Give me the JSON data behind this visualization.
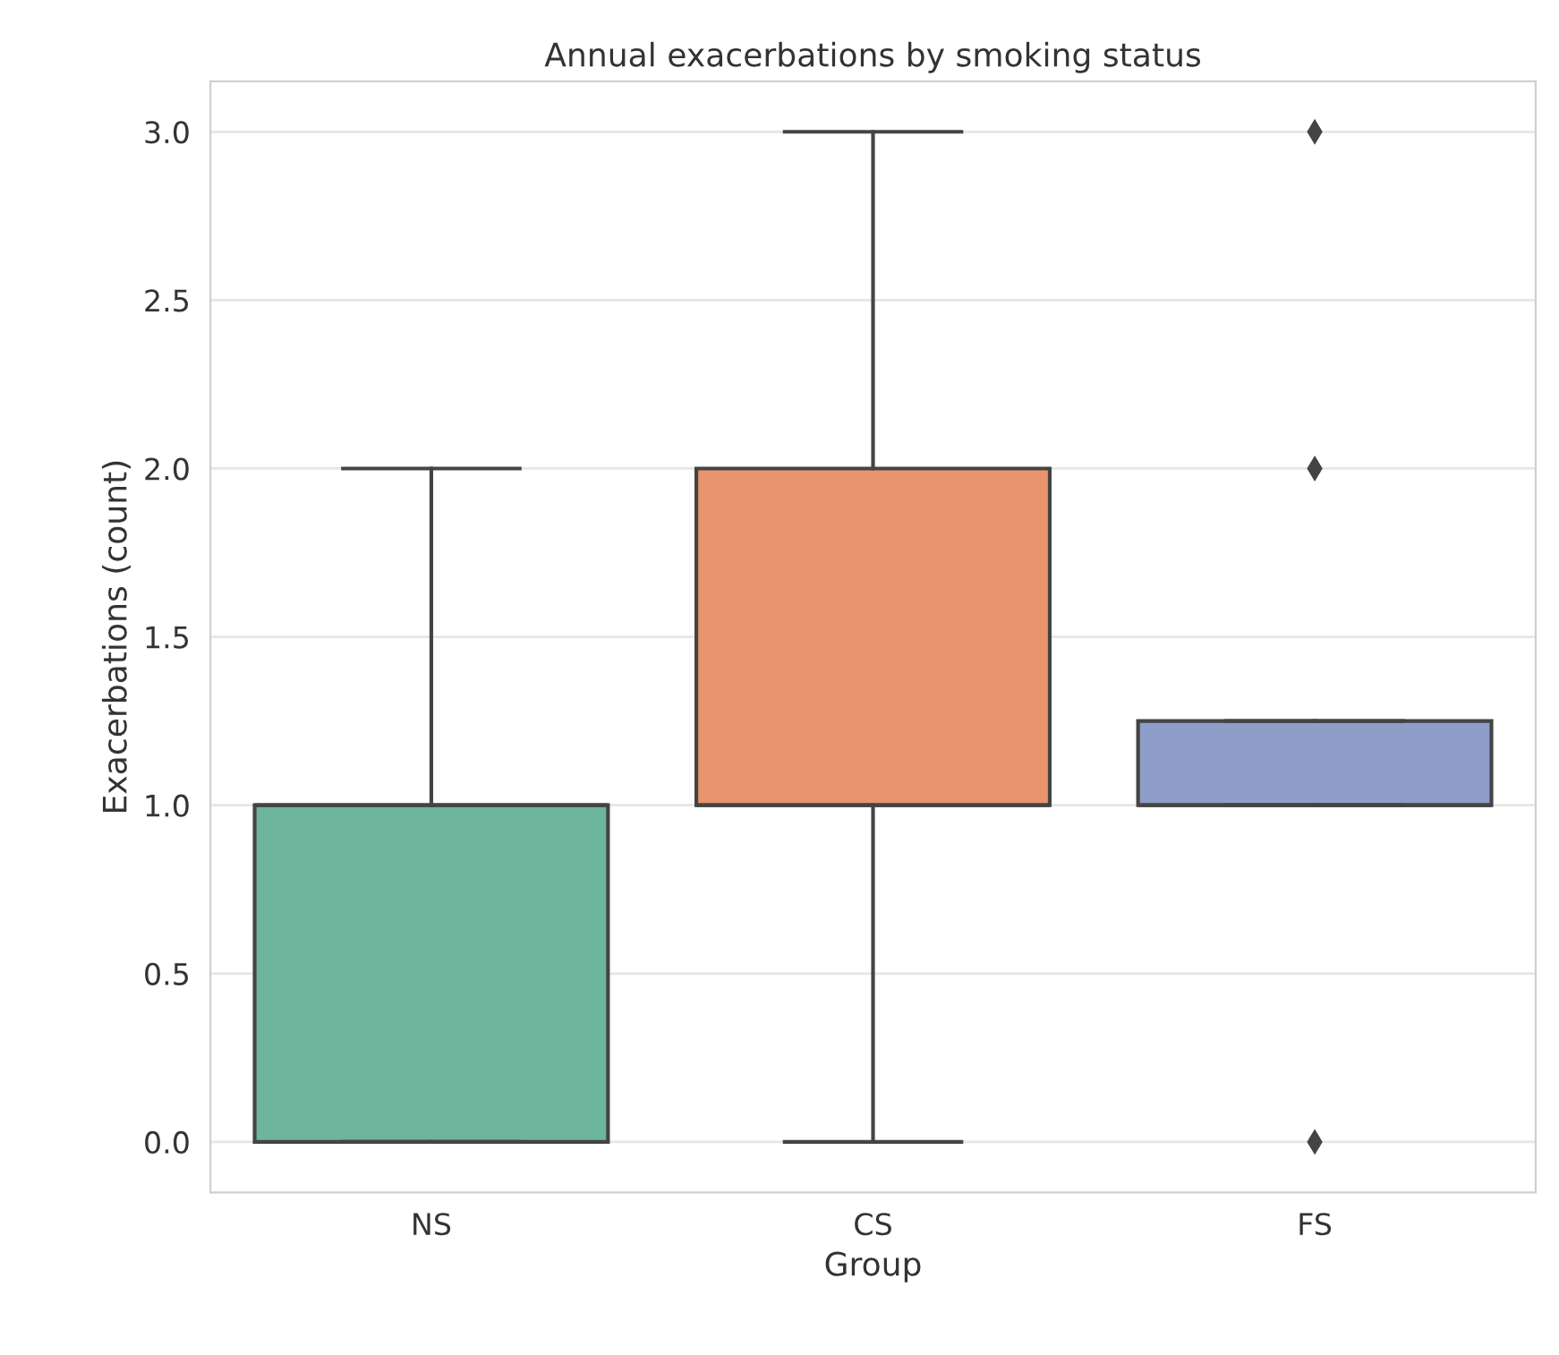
{
  "chart_data": {
    "type": "box",
    "title": "Annual exacerbations by smoking status",
    "xlabel": "Group",
    "ylabel": "Exacerbations (count)",
    "categories": [
      "NS",
      "CS",
      "FS"
    ],
    "colors": [
      "#6db59c",
      "#e9946f",
      "#8e9ec8"
    ],
    "boxes": [
      {
        "low": 0,
        "q1": 0,
        "median": 1,
        "q3": 1,
        "high": 2
      },
      {
        "low": 0,
        "q1": 1,
        "median": 1,
        "q3": 2,
        "high": 3
      },
      {
        "low": 1,
        "q1": 1,
        "median": 1,
        "q3": 1.25,
        "high": 1.25,
        "outliers": [
          0,
          2,
          3
        ]
      }
    ],
    "ylim": [
      -0.15,
      3.15
    ],
    "yticks": [
      {
        "value": 0,
        "label": "0.0"
      },
      {
        "value": 0.5,
        "label": "0.5"
      },
      {
        "value": 1,
        "label": "1.0"
      },
      {
        "value": 1.5,
        "label": "1.5"
      },
      {
        "value": 2,
        "label": "2.0"
      },
      {
        "value": 2.5,
        "label": "2.5"
      },
      {
        "value": 3,
        "label": "3.0"
      }
    ],
    "grid": "y",
    "marker": "diamond"
  }
}
